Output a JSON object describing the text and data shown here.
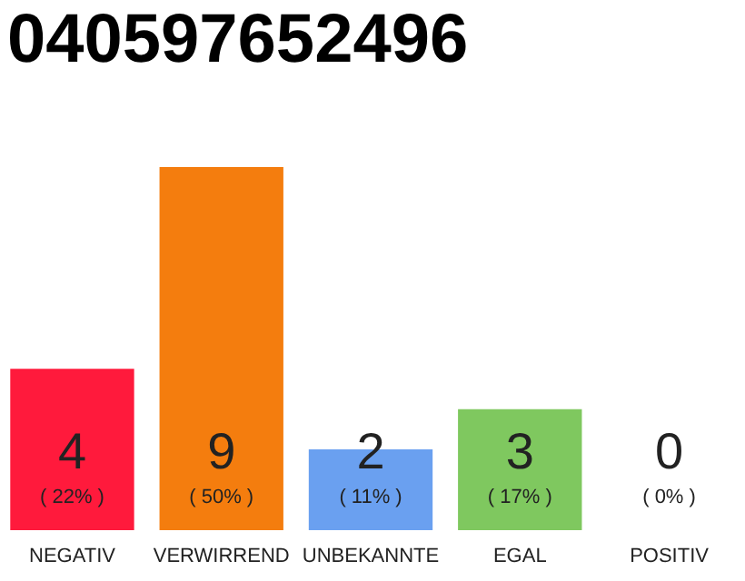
{
  "chart_data": {
    "type": "bar",
    "title": "040597652496",
    "categories": [
      "NEGATIV",
      "VERWIRREND",
      "UNBEKANNTE",
      "EGAL",
      "POSITIV"
    ],
    "values": [
      4,
      9,
      2,
      3,
      0
    ],
    "colors": [
      "#ff1a3c",
      "#f47d0e",
      "#6aa0f0",
      "#7fc85f",
      "#aaaaaa"
    ],
    "data_labels": true,
    "annotations": [
      {
        "text": "( 22% )",
        "x": "NEGATIV",
        "y": 0
      },
      {
        "text": "( 50% )",
        "x": "VERWIRREND",
        "y": 0
      },
      {
        "text": "( 11% )",
        "x": "UNBEKANNTE",
        "y": 0
      },
      {
        "text": "( 17% )",
        "x": "EGAL",
        "y": 0
      },
      {
        "text": "( 0% )",
        "x": "POSITIV",
        "y": 0
      }
    ],
    "tick_labels": "x"
  }
}
